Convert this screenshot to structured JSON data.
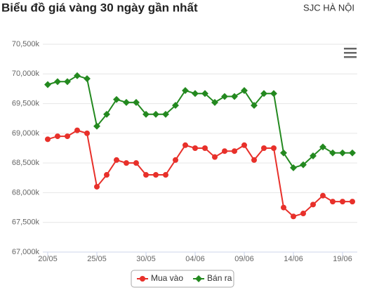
{
  "chart_data": {
    "type": "line",
    "title": "Biểu đồ giá vàng 30 ngày gần nhất",
    "subtitle": "SJC HÀ NỘI",
    "categories": [
      "20/05",
      null,
      null,
      null,
      null,
      "25/05",
      null,
      null,
      null,
      null,
      "30/05",
      null,
      null,
      null,
      null,
      "04/06",
      null,
      null,
      null,
      null,
      "09/06",
      null,
      null,
      null,
      null,
      "14/06",
      null,
      null,
      null,
      null,
      "19/06",
      null
    ],
    "series": [
      {
        "name": "Mua vào",
        "color": "#e8302a",
        "values": [
          68900,
          68950,
          68950,
          69050,
          69000,
          68100,
          68300,
          68550,
          68500,
          68500,
          68300,
          68300,
          68300,
          68550,
          68800,
          68750,
          68750,
          68600,
          68700,
          68700,
          68800,
          68550,
          68750,
          68750,
          67750,
          67600,
          67650,
          67800,
          67950,
          67850,
          67850,
          67850
        ]
      },
      {
        "name": "Bán ra",
        "color": "#23891f",
        "values": [
          69820,
          69870,
          69870,
          69970,
          69920,
          69120,
          69320,
          69570,
          69520,
          69520,
          69320,
          69320,
          69320,
          69470,
          69720,
          69670,
          69670,
          69520,
          69620,
          69620,
          69720,
          69470,
          69670,
          69670,
          68670,
          68420,
          68470,
          68620,
          68770,
          68670,
          68670,
          68670
        ]
      }
    ],
    "ylim": [
      67000,
      70500
    ],
    "yticks": [
      {
        "value": 67000,
        "label": "67,000k"
      },
      {
        "value": 67500,
        "label": "67,500k"
      },
      {
        "value": 68000,
        "label": "68,000k"
      },
      {
        "value": 68500,
        "label": "68,500k"
      },
      {
        "value": 69000,
        "label": "69,000k"
      },
      {
        "value": 69500,
        "label": "69,500k"
      },
      {
        "value": 70000,
        "label": "70,000k"
      },
      {
        "value": 70500,
        "label": "70,500k"
      }
    ],
    "grid": true
  }
}
